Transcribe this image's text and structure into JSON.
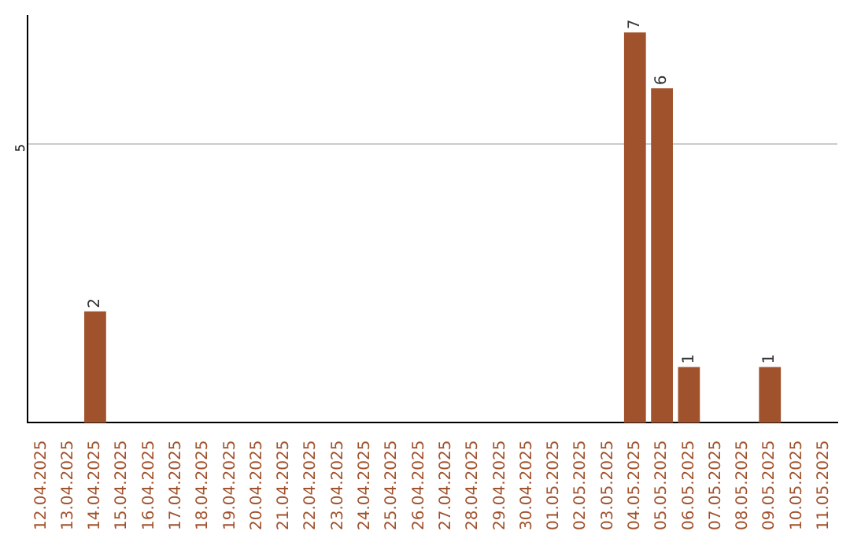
{
  "chart_data": {
    "type": "bar",
    "categories": [
      "12.04.2025",
      "13.04.2025",
      "14.04.2025",
      "15.04.2025",
      "16.04.2025",
      "17.04.2025",
      "18.04.2025",
      "19.04.2025",
      "20.04.2025",
      "21.04.2025",
      "22.04.2025",
      "23.04.2025",
      "24.04.2025",
      "25.04.2025",
      "26.04.2025",
      "27.04.2025",
      "28.04.2025",
      "29.04.2025",
      "30.04.2025",
      "01.05.2025",
      "02.05.2025",
      "03.05.2025",
      "04.05.2025",
      "05.05.2025",
      "06.05.2025",
      "07.05.2025",
      "08.05.2025",
      "09.05.2025",
      "10.05.2025",
      "11.05.2025"
    ],
    "values": [
      0,
      0,
      2,
      0,
      0,
      0,
      0,
      0,
      0,
      0,
      0,
      0,
      0,
      0,
      0,
      0,
      0,
      0,
      0,
      0,
      0,
      0,
      7,
      6,
      1,
      0,
      0,
      1,
      0,
      0
    ],
    "value_labels": [
      null,
      null,
      "2",
      null,
      null,
      null,
      null,
      null,
      null,
      null,
      null,
      null,
      null,
      null,
      null,
      null,
      null,
      null,
      null,
      null,
      null,
      null,
      "7",
      "6",
      "1",
      null,
      null,
      "1",
      null,
      null
    ],
    "color": "#a0522d",
    "ylim": [
      0,
      7.3
    ],
    "yticks": [
      5
    ],
    "grid": "y"
  }
}
